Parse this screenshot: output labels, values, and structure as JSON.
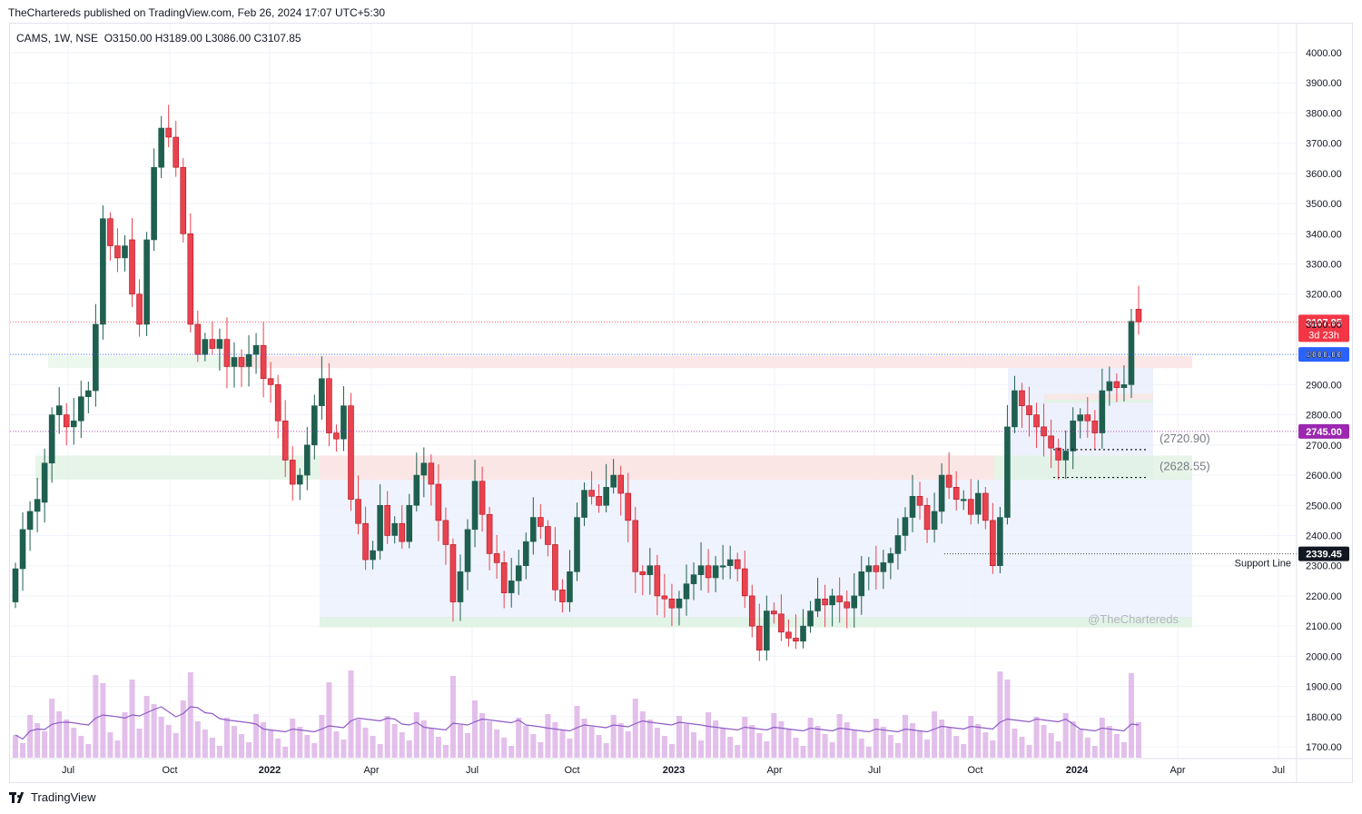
{
  "header": {
    "published": "TheChartereds published on TradingView.com, Feb 26, 2024 17:07 UTC+5:30",
    "symbol": "CAMS, 1W, NSE",
    "ohlc": "O3150.00  H3189.00  L3086.00  C3107.85"
  },
  "footer": {
    "brand": "TradingView"
  },
  "watermark": "@TheChartereds",
  "colors": {
    "up": "#1f5f4f",
    "down": "#e8434f",
    "volume": "#d9a9e4",
    "vol_ma": "#8e5cc7",
    "price_tag": "#f23645",
    "blue_tag": "#2962ff",
    "purple_tag": "#9c27b0",
    "black_tag": "#131722"
  },
  "chart_data": {
    "type": "candlestick",
    "timeframe": "1W",
    "ylim": [
      1650,
      4060
    ],
    "y_ticks": [
      "4000.00",
      "3900.00",
      "3800.00",
      "3700.00",
      "3600.00",
      "3500.00",
      "3400.00",
      "3300.00",
      "3200.00",
      "3100.00",
      "3000.00",
      "2900.00",
      "2800.00",
      "2700.00",
      "2600.00",
      "2500.00",
      "2400.00",
      "2300.00",
      "2200.00",
      "2100.00",
      "2000.00",
      "1900.00",
      "1800.00",
      "1700.00"
    ],
    "x_ticks": [
      "Jul",
      "Oct",
      "2022",
      "Apr",
      "Jul",
      "Oct",
      "2023",
      "Apr",
      "Jul",
      "Oct",
      "2024",
      "Apr",
      "Jul"
    ],
    "series": [
      {
        "name": "CAMS",
        "close": [
          2290,
          2420,
          2480,
          2520,
          2640,
          2800,
          2830,
          2760,
          2780,
          2860,
          2880,
          3100,
          3450,
          3360,
          3320,
          3360,
          3200,
          3100,
          3380,
          3620,
          3750,
          3720,
          3620,
          3400,
          3100,
          3000,
          3050,
          3020,
          3050,
          2960,
          2990,
          2960,
          3000,
          3030,
          2920,
          2900,
          2780,
          2650,
          2570,
          2600,
          2700,
          2830,
          2920,
          2740,
          2720,
          2830,
          2520,
          2440,
          2320,
          2350,
          2500,
          2400,
          2440,
          2380,
          2500,
          2600,
          2640,
          2570,
          2450,
          2370,
          2180,
          2280,
          2420,
          2580,
          2470,
          2340,
          2310,
          2210,
          2250,
          2300,
          2380,
          2460,
          2430,
          2370,
          2220,
          2180,
          2280,
          2460,
          2550,
          2530,
          2500,
          2560,
          2600,
          2540,
          2450,
          2280,
          2270,
          2300,
          2200,
          2190,
          2160,
          2190,
          2240,
          2270,
          2300,
          2260,
          2300,
          2300,
          2320,
          2290,
          2200,
          2100,
          2020,
          2150,
          2140,
          2080,
          2060,
          2050,
          2100,
          2150,
          2190,
          2170,
          2200,
          2180,
          2160,
          2200,
          2280,
          2300,
          2280,
          2310,
          2340,
          2400,
          2460,
          2530,
          2500,
          2420,
          2480,
          2600,
          2560,
          2520,
          2520,
          2470,
          2540,
          2450,
          2300,
          2460,
          2760,
          2880,
          2830,
          2800,
          2760,
          2730,
          2690,
          2650,
          2680,
          2780,
          2800,
          2780,
          2740,
          2880,
          2910,
          2890,
          2900,
          3110,
          3107.85
        ],
        "open": [
          2180,
          2290,
          2420,
          2480,
          2510,
          2640,
          2800,
          2800,
          2760,
          2780,
          2860,
          2880,
          3100,
          3450,
          3360,
          3320,
          3380,
          3200,
          3100,
          3380,
          3620,
          3750,
          3720,
          3620,
          3400,
          3100,
          3000,
          3050,
          3020,
          3050,
          2960,
          2990,
          2960,
          3000,
          3030,
          2920,
          2900,
          2780,
          2650,
          2570,
          2600,
          2700,
          2830,
          2920,
          2740,
          2720,
          2830,
          2520,
          2440,
          2320,
          2350,
          2500,
          2400,
          2440,
          2380,
          2500,
          2600,
          2640,
          2570,
          2450,
          2370,
          2180,
          2280,
          2420,
          2580,
          2470,
          2340,
          2310,
          2210,
          2250,
          2300,
          2380,
          2460,
          2430,
          2370,
          2220,
          2180,
          2280,
          2460,
          2550,
          2530,
          2500,
          2560,
          2600,
          2540,
          2450,
          2280,
          2270,
          2300,
          2200,
          2190,
          2160,
          2190,
          2240,
          2270,
          2300,
          2260,
          2300,
          2300,
          2320,
          2290,
          2200,
          2100,
          2020,
          2150,
          2140,
          2080,
          2060,
          2050,
          2100,
          2150,
          2190,
          2170,
          2200,
          2180,
          2160,
          2200,
          2280,
          2300,
          2280,
          2310,
          2340,
          2400,
          2460,
          2530,
          2500,
          2420,
          2480,
          2600,
          2560,
          2520,
          2520,
          2470,
          2540,
          2450,
          2300,
          2460,
          2760,
          2880,
          2830,
          2800,
          2760,
          2730,
          2690,
          2650,
          2680,
          2780,
          2800,
          2780,
          2740,
          2880,
          2910,
          2890,
          2900,
          3150
        ]
      },
      {
        "name": "Volume"
      }
    ],
    "levels": [
      {
        "price": 3107.85,
        "label": "3107.85",
        "sub": "3d 23h"
      },
      {
        "price": 3000.0,
        "label": "3000.00"
      },
      {
        "price": 2745.0,
        "label": "2745.00"
      },
      {
        "price": 2339.45,
        "label": "2339.45",
        "text": "Support Line"
      },
      {
        "price": 2720.9,
        "label": "(2720.90)"
      },
      {
        "price": 2628.55,
        "label": "(2628.55)"
      }
    ],
    "grid": true
  }
}
